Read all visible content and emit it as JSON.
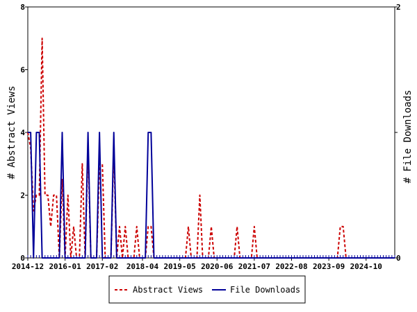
{
  "chart_data": {
    "type": "line",
    "x_start": "2014-12",
    "x_end": "2025-08",
    "x_tick_labels": [
      "2014-12",
      "2016-01",
      "2017-02",
      "2018-04",
      "2019-05",
      "2020-06",
      "2021-07",
      "2022-08",
      "2023-09",
      "2024-10"
    ],
    "y_left": {
      "label": "# Abstract Views",
      "range": [
        0,
        8
      ],
      "ticks": [
        "0",
        "2",
        "4",
        "6",
        "8"
      ]
    },
    "y_right": {
      "label": "# File Downloads",
      "range": [
        0,
        2
      ],
      "ticks": [
        "0",
        "1",
        "2"
      ]
    },
    "legend": "bottom",
    "grid": false,
    "series": [
      {
        "name": "Abstract Views",
        "axis": "left",
        "color": "#cc0000",
        "style": "dashed",
        "points": [
          [
            "2014-12",
            4
          ],
          [
            "2015-01",
            3.5
          ],
          [
            "2015-02",
            1.5
          ],
          [
            "2015-03",
            2
          ],
          [
            "2015-04",
            2
          ],
          [
            "2015-05",
            7
          ],
          [
            "2015-06",
            2
          ],
          [
            "2015-07",
            2
          ],
          [
            "2015-08",
            1
          ],
          [
            "2015-09",
            2
          ],
          [
            "2015-10",
            2
          ],
          [
            "2015-11",
            0
          ],
          [
            "2015-12",
            2.5
          ],
          [
            "2016-01",
            0
          ],
          [
            "2016-02",
            2
          ],
          [
            "2016-03",
            0
          ],
          [
            "2016-04",
            1
          ],
          [
            "2016-05",
            0
          ],
          [
            "2016-06",
            0
          ],
          [
            "2016-07",
            3
          ],
          [
            "2016-08",
            0
          ],
          [
            "2016-09",
            3.5
          ],
          [
            "2016-10",
            0
          ],
          [
            "2016-11",
            0
          ],
          [
            "2016-12",
            0
          ],
          [
            "2017-01",
            3
          ],
          [
            "2017-02",
            3
          ],
          [
            "2017-03",
            0
          ],
          [
            "2017-04",
            0
          ],
          [
            "2017-05",
            0
          ],
          [
            "2017-06",
            3.5
          ],
          [
            "2017-07",
            0
          ],
          [
            "2017-08",
            1
          ],
          [
            "2017-09",
            0
          ],
          [
            "2017-10",
            1
          ],
          [
            "2017-11",
            0
          ],
          [
            "2017-12",
            0
          ],
          [
            "2018-01",
            0
          ],
          [
            "2018-02",
            1
          ],
          [
            "2018-03",
            0
          ],
          [
            "2018-04",
            0
          ],
          [
            "2018-05",
            0
          ],
          [
            "2018-06",
            1
          ],
          [
            "2018-07",
            1
          ],
          [
            "2018-08",
            0
          ],
          [
            "2019-07",
            0
          ],
          [
            "2019-08",
            1
          ],
          [
            "2019-09",
            0
          ],
          [
            "2019-11",
            0
          ],
          [
            "2019-12",
            2
          ],
          [
            "2020-01",
            0
          ],
          [
            "2020-03",
            0
          ],
          [
            "2020-04",
            1
          ],
          [
            "2020-05",
            0
          ],
          [
            "2020-12",
            0
          ],
          [
            "2021-01",
            1
          ],
          [
            "2021-02",
            0
          ],
          [
            "2021-06",
            0
          ],
          [
            "2021-07",
            1
          ],
          [
            "2021-08",
            0
          ],
          [
            "2023-12",
            0
          ],
          [
            "2024-01",
            1
          ],
          [
            "2024-02",
            1
          ],
          [
            "2024-03",
            0
          ],
          [
            "2025-08",
            0
          ]
        ]
      },
      {
        "name": "File Downloads",
        "axis": "right",
        "color": "#000099",
        "style": "solid",
        "points": [
          [
            "2014-12",
            1
          ],
          [
            "2015-01",
            1
          ],
          [
            "2015-02",
            0
          ],
          [
            "2015-03",
            1
          ],
          [
            "2015-04",
            1
          ],
          [
            "2015-05",
            0
          ],
          [
            "2015-06",
            0
          ],
          [
            "2015-07",
            0
          ],
          [
            "2015-08",
            0
          ],
          [
            "2015-09",
            0
          ],
          [
            "2015-10",
            0
          ],
          [
            "2015-11",
            0
          ],
          [
            "2015-12",
            1
          ],
          [
            "2016-01",
            0
          ],
          [
            "2016-02",
            0
          ],
          [
            "2016-03",
            0
          ],
          [
            "2016-04",
            0
          ],
          [
            "2016-05",
            0
          ],
          [
            "2016-06",
            0
          ],
          [
            "2016-07",
            0
          ],
          [
            "2016-08",
            0
          ],
          [
            "2016-09",
            1
          ],
          [
            "2016-10",
            0
          ],
          [
            "2016-11",
            0
          ],
          [
            "2016-12",
            0
          ],
          [
            "2017-01",
            1
          ],
          [
            "2017-02",
            0
          ],
          [
            "2017-03",
            0
          ],
          [
            "2017-04",
            0
          ],
          [
            "2017-05",
            0
          ],
          [
            "2017-06",
            1
          ],
          [
            "2017-07",
            0
          ],
          [
            "2018-05",
            0
          ],
          [
            "2018-06",
            1
          ],
          [
            "2018-07",
            1
          ],
          [
            "2018-08",
            0
          ],
          [
            "2025-08",
            0
          ]
        ]
      }
    ]
  }
}
